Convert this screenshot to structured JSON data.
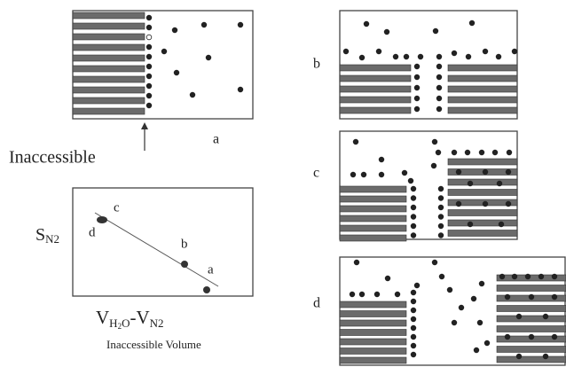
{
  "panels": [
    {
      "label": "a"
    },
    {
      "label": "b"
    },
    {
      "label": "c"
    },
    {
      "label": "d"
    }
  ],
  "arrow_label": "Inaccessible",
  "plot": {
    "y_label": {
      "main": "S",
      "sub": "N2"
    },
    "x_label": {
      "parts": [
        "V",
        "H",
        "2",
        "O",
        "-V",
        "N2"
      ]
    },
    "x_caption": "Inaccessible Volume",
    "point_labels": [
      "c",
      "d",
      "b",
      "a"
    ]
  }
}
